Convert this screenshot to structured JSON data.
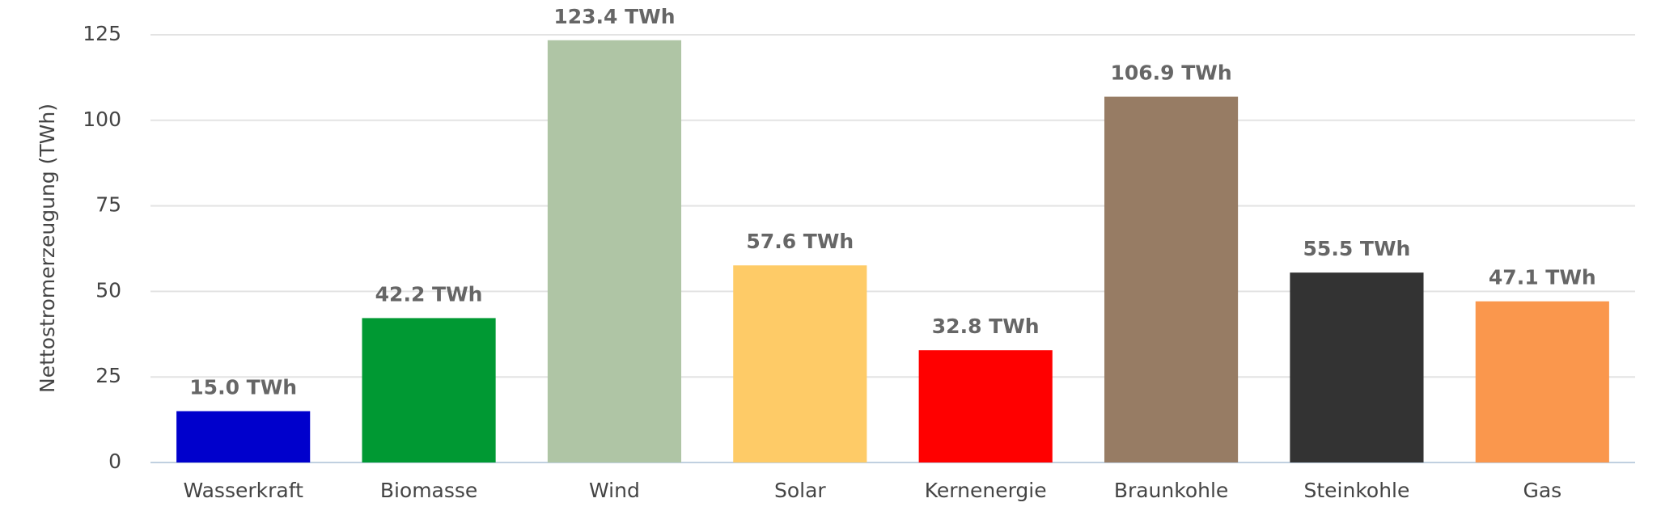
{
  "chart_data": {
    "type": "bar",
    "y_label": "Nettostromerzeugung (TWh)",
    "categories": [
      "Wasserkraft",
      "Biomasse",
      "Wind",
      "Solar",
      "Kernenergie",
      "Braunkohle",
      "Steinkohle",
      "Gas"
    ],
    "values": [
      15.0,
      42.2,
      123.4,
      57.6,
      32.8,
      106.9,
      55.5,
      47.1
    ],
    "value_labels": [
      "15.0 TWh",
      "42.2 TWh",
      "123.4 TWh",
      "57.6 TWh",
      "32.8 TWh",
      "106.9 TWh",
      "55.5 TWh",
      "47.1 TWh"
    ],
    "colors": [
      "#0000cc",
      "#009933",
      "#afc5a5",
      "#fecb67",
      "#ff0000",
      "#977c64",
      "#333333",
      "#fa974d"
    ],
    "ylim": [
      0,
      125
    ],
    "yticks": [
      0,
      25,
      50,
      75,
      100,
      125
    ],
    "grid": true
  }
}
